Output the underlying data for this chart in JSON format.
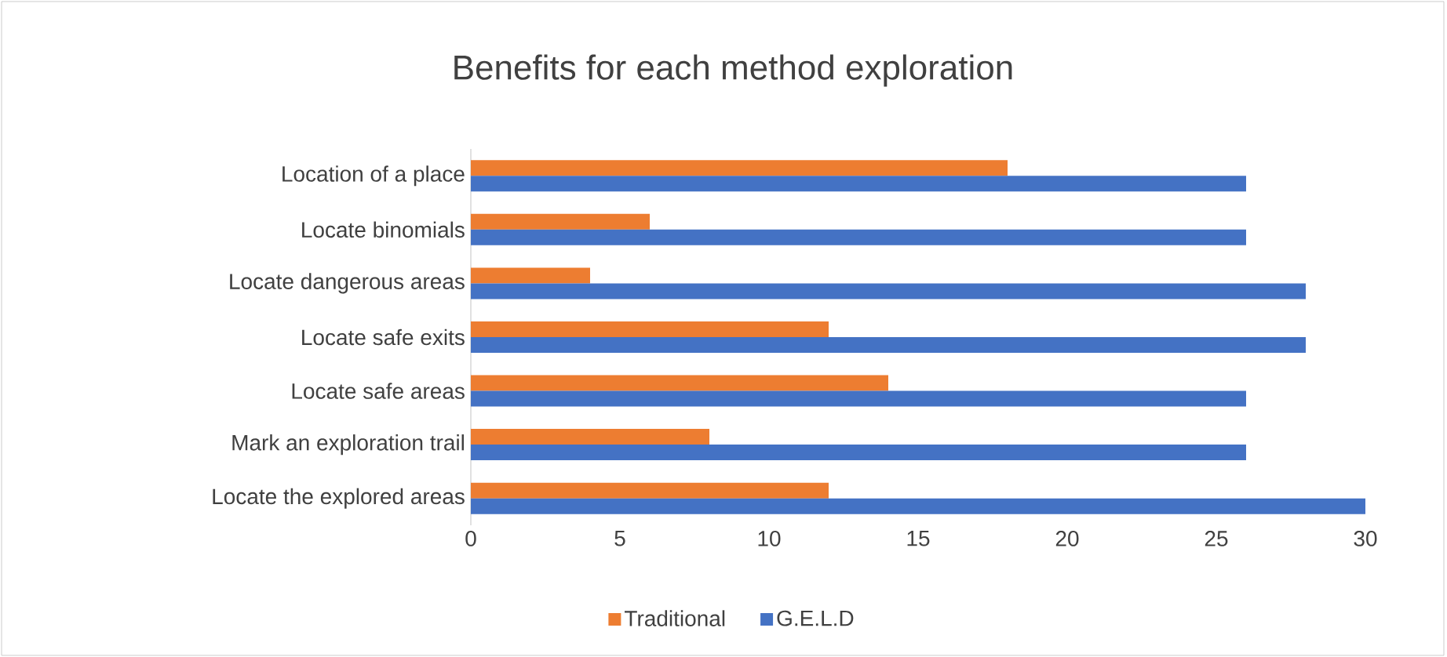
{
  "chart_data": {
    "type": "bar",
    "orientation": "horizontal",
    "title": "Benefits for each method  exploration",
    "categories": [
      "Location of a place",
      "Locate binomials",
      "Locate dangerous areas",
      "Locate safe exits",
      "Locate safe areas",
      "Mark an exploration trail",
      "Locate the explored areas"
    ],
    "series": [
      {
        "name": "Traditional",
        "color": "#ed7d31",
        "values": [
          18,
          6,
          4,
          12,
          14,
          8,
          12
        ]
      },
      {
        "name": "G.E.L.D",
        "color": "#4472c4",
        "values": [
          26,
          26,
          28,
          28,
          26,
          26,
          30
        ]
      }
    ],
    "xlim": [
      0,
      30
    ],
    "xticks": [
      0,
      5,
      10,
      15,
      20,
      25,
      30
    ],
    "grid": false,
    "legend": "bottom"
  }
}
